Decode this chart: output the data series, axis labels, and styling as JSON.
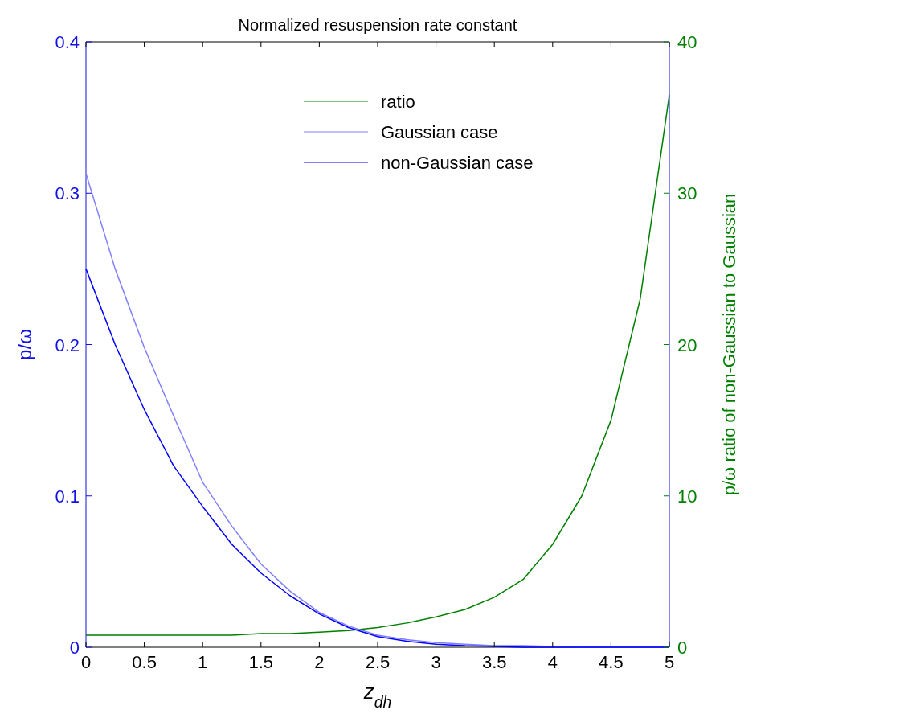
{
  "chart_data": {
    "type": "line",
    "title": "Normalized resuspension rate constant",
    "xlabel": "z$_{dh}$",
    "ylabel": "p/ω",
    "y2label": "p/ω ratio of non-Gaussian to Gaussian",
    "x": [
      0,
      0.25,
      0.5,
      0.75,
      1,
      1.25,
      1.5,
      1.75,
      2,
      2.25,
      2.5,
      2.75,
      3,
      3.25,
      3.5,
      3.75,
      4,
      4.25,
      4.5,
      4.75,
      5
    ],
    "series": [
      {
        "name": "ratio",
        "color": "#008000",
        "axis": "y2",
        "values": [
          0.8,
          0.8,
          0.8,
          0.8,
          0.8,
          0.8,
          0.9,
          0.9,
          1.0,
          1.1,
          1.3,
          1.6,
          2.0,
          2.5,
          3.3,
          4.5,
          6.8,
          10,
          15,
          23,
          36.5
        ]
      },
      {
        "name": "Gaussian case",
        "color": "#8080ff",
        "values": [
          0.313,
          0.25,
          0.198,
          0.153,
          0.109,
          0.08,
          0.055,
          0.037,
          0.023,
          0.014,
          0.008,
          0.005,
          0.003,
          0.002,
          0.001,
          0.001,
          0.0005,
          0,
          0,
          0,
          0
        ]
      },
      {
        "name": "non-Gaussian case",
        "color": "#0000ff",
        "values": [
          0.25,
          0.2,
          0.157,
          0.12,
          0.093,
          0.068,
          0.049,
          0.034,
          0.022,
          0.013,
          0.007,
          0.004,
          0.002,
          0.001,
          0.0005,
          0,
          0,
          0,
          0,
          0,
          0
        ]
      }
    ],
    "xlim": [
      0,
      5
    ],
    "xticks": [
      0,
      0.5,
      1,
      1.5,
      2,
      2.5,
      3,
      3.5,
      4,
      4.5,
      5
    ],
    "ylim": [
      0,
      0.4
    ],
    "yticks": [
      0,
      0.1,
      0.2,
      0.3,
      0.4
    ],
    "y2lim": [
      0,
      40
    ],
    "y2ticks": [
      0,
      10,
      20,
      30,
      40
    ],
    "legend": "top",
    "grid": false,
    "marker": "none",
    "line_style": "solid"
  }
}
